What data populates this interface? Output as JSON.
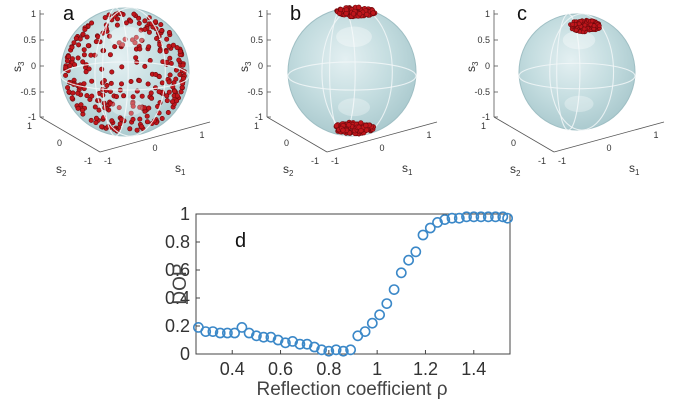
{
  "colors": {
    "sphere_fill": "#b9d6da",
    "sphere_edge": "#9fbfc4",
    "grid_line": "#f2f7f8",
    "point_red": "#c0161c",
    "marker_blue": "#3b88c8",
    "axis_gray": "#444444"
  },
  "spheres": [
    {
      "panel_label": "a",
      "distribution": "uniform",
      "axis_labels": {
        "x": "s",
        "x_sub": "1",
        "y": "s",
        "y_sub": "2",
        "z": "s",
        "z_sub": "3"
      },
      "z_ticks": [
        "1",
        "0.5",
        "0",
        "-0.5",
        "-1"
      ],
      "x_ticks": [
        "-1",
        "0",
        "1"
      ],
      "y_ticks": [
        "1",
        "0",
        "-1"
      ]
    },
    {
      "panel_label": "b",
      "distribution": "two poles",
      "axis_labels": {
        "x": "s",
        "x_sub": "1",
        "y": "s",
        "y_sub": "2",
        "z": "s",
        "z_sub": "3"
      },
      "z_ticks": [
        "1",
        "0.5",
        "0",
        "-0.5",
        "-1"
      ],
      "x_ticks": [
        "-1",
        "0",
        "1"
      ],
      "y_ticks": [
        "1",
        "0",
        "-1"
      ]
    },
    {
      "panel_label": "c",
      "distribution": "north pole",
      "axis_labels": {
        "x": "s",
        "x_sub": "1",
        "y": "s",
        "y_sub": "2",
        "z": "s",
        "z_sub": "3"
      },
      "z_ticks": [
        "1",
        "0.5",
        "0",
        "-0.5",
        "-1"
      ],
      "x_ticks": [
        "-1",
        "0",
        "1"
      ],
      "y_ticks": [
        "1",
        "0",
        "-1"
      ]
    }
  ],
  "chart_data": {
    "type": "scatter",
    "panel_label": "d",
    "xlabel": "Reflection coefficient ρ",
    "ylabel": "DOP",
    "xlim": [
      0.25,
      1.55
    ],
    "ylim": [
      0,
      1
    ],
    "x_ticks": [
      0.4,
      0.6,
      0.8,
      1,
      1.2,
      1.4
    ],
    "x_tick_labels": [
      "0.4",
      "0.6",
      "0.8",
      "1",
      "1.2",
      "1.4"
    ],
    "y_ticks": [
      0,
      0.2,
      0.4,
      0.6,
      0.8,
      1
    ],
    "y_tick_labels": [
      "0",
      "0.2",
      "0.4",
      "0.6",
      "0.8",
      "1"
    ],
    "marker": "open circle",
    "grid": false,
    "points": [
      [
        0.26,
        0.19
      ],
      [
        0.29,
        0.16
      ],
      [
        0.32,
        0.16
      ],
      [
        0.35,
        0.15
      ],
      [
        0.38,
        0.15
      ],
      [
        0.41,
        0.15
      ],
      [
        0.44,
        0.19
      ],
      [
        0.47,
        0.15
      ],
      [
        0.5,
        0.13
      ],
      [
        0.53,
        0.12
      ],
      [
        0.56,
        0.12
      ],
      [
        0.59,
        0.1
      ],
      [
        0.62,
        0.08
      ],
      [
        0.65,
        0.09
      ],
      [
        0.68,
        0.07
      ],
      [
        0.71,
        0.07
      ],
      [
        0.74,
        0.05
      ],
      [
        0.77,
        0.03
      ],
      [
        0.8,
        0.02
      ],
      [
        0.83,
        0.03
      ],
      [
        0.86,
        0.02
      ],
      [
        0.89,
        0.03
      ],
      [
        0.92,
        0.13
      ],
      [
        0.95,
        0.16
      ],
      [
        0.98,
        0.22
      ],
      [
        1.01,
        0.28
      ],
      [
        1.04,
        0.36
      ],
      [
        1.07,
        0.46
      ],
      [
        1.1,
        0.58
      ],
      [
        1.13,
        0.67
      ],
      [
        1.16,
        0.73
      ],
      [
        1.19,
        0.85
      ],
      [
        1.22,
        0.9
      ],
      [
        1.25,
        0.94
      ],
      [
        1.28,
        0.96
      ],
      [
        1.31,
        0.97
      ],
      [
        1.34,
        0.97
      ],
      [
        1.37,
        0.98
      ],
      [
        1.4,
        0.98
      ],
      [
        1.43,
        0.98
      ],
      [
        1.46,
        0.98
      ],
      [
        1.49,
        0.98
      ],
      [
        1.52,
        0.98
      ],
      [
        1.54,
        0.97
      ]
    ]
  }
}
